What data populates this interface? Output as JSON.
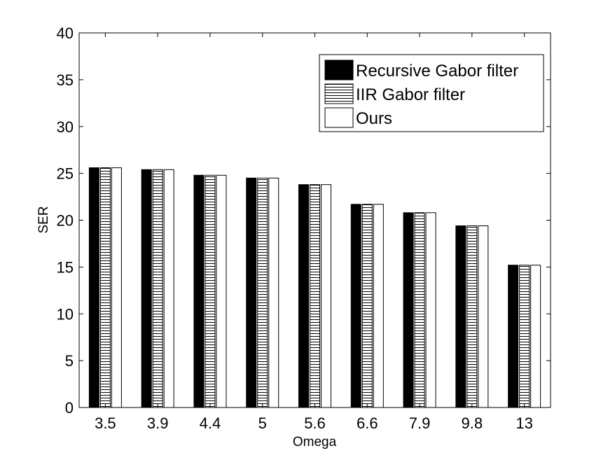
{
  "chart_data": {
    "type": "bar",
    "title": "",
    "xlabel": "Omega",
    "ylabel": "SER",
    "ylim": [
      0,
      40
    ],
    "yticks": [
      0,
      5,
      10,
      15,
      20,
      25,
      30,
      35,
      40
    ],
    "categories": [
      "3.5",
      "3.9",
      "4.4",
      "5",
      "5.6",
      "6.6",
      "7.9",
      "9.8",
      "13"
    ],
    "series": [
      {
        "name": "Recursive Gabor filter",
        "fill": "solid",
        "color": "#000000",
        "values": [
          25.6,
          25.4,
          24.8,
          24.5,
          23.8,
          21.7,
          20.8,
          19.4,
          15.2
        ]
      },
      {
        "name": "IIR Gabor filter",
        "fill": "horizontal-stripes",
        "color": "#000000",
        "values": [
          25.6,
          25.4,
          24.8,
          24.5,
          23.8,
          21.7,
          20.8,
          19.4,
          15.2
        ]
      },
      {
        "name": "Ours",
        "fill": "white",
        "color": "#ffffff",
        "values": [
          25.6,
          25.4,
          24.8,
          24.5,
          23.8,
          21.7,
          20.8,
          19.4,
          15.2
        ]
      }
    ],
    "grid": false,
    "legend_position": "top-right"
  }
}
